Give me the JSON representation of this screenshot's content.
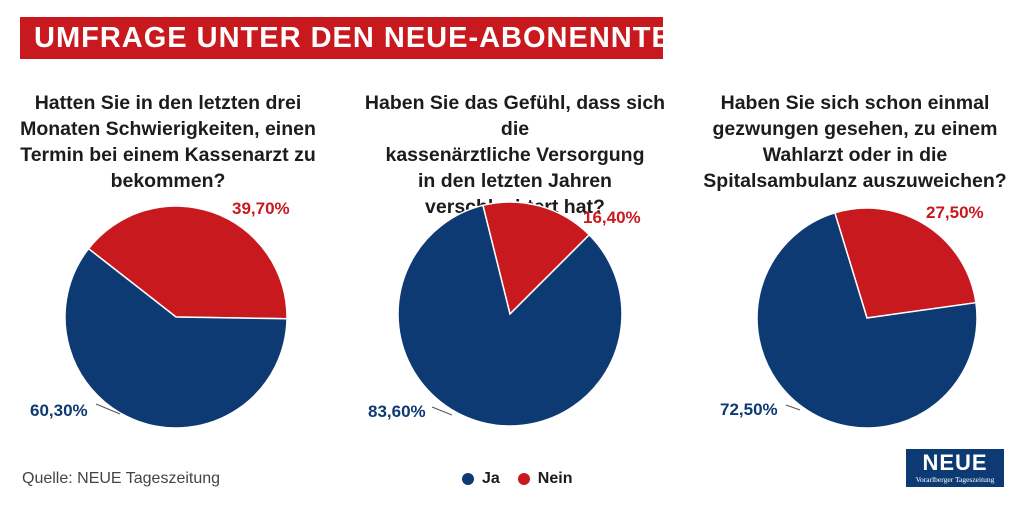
{
  "header": {
    "title": "UMFRAGE UNTER DEN NEUE-ABONENNTEN"
  },
  "colors": {
    "ja": "#0e3a73",
    "nein": "#c8191f"
  },
  "chart_data": [
    {
      "type": "pie",
      "title": "Hatten Sie in den letzten drei\nMonaten Schwierigkeiten, einen\nTermin bei einem Kassenarzt zu\nbekommen?",
      "slices": [
        {
          "name": "Ja",
          "value": 60.3,
          "label": "60,30%"
        },
        {
          "name": "Nein",
          "value": 39.7,
          "label": "39,70%"
        }
      ]
    },
    {
      "type": "pie",
      "title": "Haben Sie das Gefühl, dass sich die\nkassenärztliche Versorgung\nin den letzten Jahren\nverschlechtert hat?",
      "slices": [
        {
          "name": "Ja",
          "value": 83.6,
          "label": "83,60%"
        },
        {
          "name": "Nein",
          "value": 16.4,
          "label": "16,40%"
        }
      ]
    },
    {
      "type": "pie",
      "title": "Haben Sie sich schon einmal\ngezwungen gesehen, zu einem\nWahlarzt oder in die\nSpitalsambulanz auszuweichen?",
      "slices": [
        {
          "name": "Ja",
          "value": 72.5,
          "label": "72,50%"
        },
        {
          "name": "Nein",
          "value": 27.5,
          "label": "27,50%"
        }
      ]
    }
  ],
  "legend": {
    "ja": "Ja",
    "nein": "Nein"
  },
  "footer": {
    "source": "Quelle: NEUE Tageszeitung"
  },
  "logo": {
    "main": "NEUE",
    "sub": "Vorarlberger Tageszeitung"
  }
}
